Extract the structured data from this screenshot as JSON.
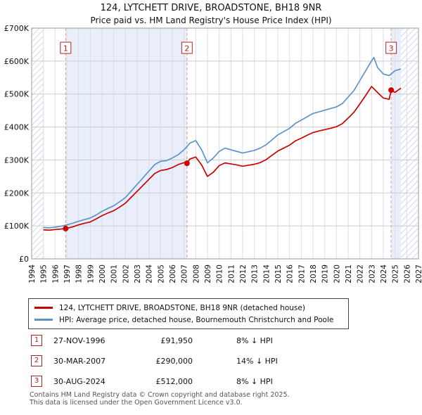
{
  "chart_data": {
    "type": "line",
    "title": "124, LYTCHETT DRIVE, BROADSTONE, BH18 9NR",
    "subtitle": "Price paid vs. HM Land Registry's House Price Index (HPI)",
    "xlabel": "",
    "ylabel": "",
    "x_range": [
      1994,
      2027
    ],
    "y_range": [
      0,
      700000
    ],
    "x_ticks": [
      1994,
      1995,
      1996,
      1997,
      1998,
      1999,
      2000,
      2001,
      2002,
      2003,
      2004,
      2005,
      2006,
      2007,
      2008,
      2009,
      2010,
      2011,
      2012,
      2013,
      2014,
      2015,
      2016,
      2017,
      2018,
      2019,
      2020,
      2021,
      2022,
      2023,
      2024,
      2025,
      2026,
      2027
    ],
    "y_ticks": [
      0,
      100000,
      200000,
      300000,
      400000,
      500000,
      600000,
      700000
    ],
    "y_tick_labels": [
      "£0",
      "£100K",
      "£200K",
      "£300K",
      "£400K",
      "£500K",
      "£600K",
      "£700K"
    ],
    "data_start": 1995,
    "data_end": 2025.5,
    "shaded_regions": [
      [
        1996.9,
        2007.25
      ],
      [
        2024.67,
        2025.5
      ]
    ],
    "grid": true,
    "legend_position": "below",
    "colors": {
      "red": "#cc0000",
      "blue": "#5f93c8",
      "dashed": "#e09999",
      "band": "#e9effa",
      "hatch": "#c5d0e2",
      "grid_v": "#dcdce4",
      "grid_h": "#cccccc",
      "frame": "#999999",
      "badge": "#b22222"
    },
    "series": [
      {
        "id": "price-paid",
        "name": "124, LYTCHETT DRIVE, BROADSTONE, BH18 9NR (detached house)",
        "color": "#cc0000",
        "points": [
          [
            1995,
            88000
          ],
          [
            1995.5,
            87000
          ],
          [
            1996,
            89000
          ],
          [
            1996.5,
            90500
          ],
          [
            1996.9,
            91950
          ],
          [
            1997.5,
            97000
          ],
          [
            1998,
            103000
          ],
          [
            1998.5,
            108000
          ],
          [
            1999,
            112000
          ],
          [
            1999.5,
            121000
          ],
          [
            2000,
            131000
          ],
          [
            2000.5,
            139000
          ],
          [
            2001,
            146000
          ],
          [
            2001.5,
            157000
          ],
          [
            2002,
            169000
          ],
          [
            2002.5,
            187000
          ],
          [
            2003,
            205000
          ],
          [
            2003.5,
            223000
          ],
          [
            2004,
            241000
          ],
          [
            2004.5,
            259000
          ],
          [
            2005,
            268000
          ],
          [
            2005.5,
            271000
          ],
          [
            2006,
            277000
          ],
          [
            2006.5,
            286000
          ],
          [
            2007,
            292000
          ],
          [
            2007.25,
            290000
          ],
          [
            2007.5,
            303000
          ],
          [
            2008,
            309000
          ],
          [
            2008.5,
            285000
          ],
          [
            2009,
            250000
          ],
          [
            2009.5,
            263000
          ],
          [
            2010,
            283000
          ],
          [
            2010.5,
            291000
          ],
          [
            2011,
            288000
          ],
          [
            2011.5,
            285000
          ],
          [
            2012,
            281000
          ],
          [
            2012.5,
            284000
          ],
          [
            2013,
            287000
          ],
          [
            2013.5,
            292000
          ],
          [
            2014,
            301000
          ],
          [
            2014.5,
            314000
          ],
          [
            2015,
            327000
          ],
          [
            2015.5,
            336000
          ],
          [
            2016,
            345000
          ],
          [
            2016.5,
            358000
          ],
          [
            2017,
            366000
          ],
          [
            2017.5,
            375000
          ],
          [
            2018,
            383000
          ],
          [
            2018.5,
            388000
          ],
          [
            2019,
            392000
          ],
          [
            2019.5,
            396000
          ],
          [
            2020,
            401000
          ],
          [
            2020.5,
            410000
          ],
          [
            2021,
            427000
          ],
          [
            2021.5,
            445000
          ],
          [
            2022,
            470000
          ],
          [
            2022.5,
            496000
          ],
          [
            2023,
            523000
          ],
          [
            2023.5,
            505000
          ],
          [
            2024,
            488000
          ],
          [
            2024.5,
            484000
          ],
          [
            2024.67,
            512000
          ],
          [
            2025,
            505000
          ],
          [
            2025.5,
            518000
          ]
        ]
      },
      {
        "id": "hpi",
        "name": "HPI: Average price, detached house, Bournemouth Christchurch and Poole",
        "color": "#5f93c8",
        "points": [
          [
            1995,
            95000
          ],
          [
            1995.5,
            94000
          ],
          [
            1996,
            96000
          ],
          [
            1996.5,
            99000
          ],
          [
            1997,
            103000
          ],
          [
            1997.5,
            108000
          ],
          [
            1998,
            114000
          ],
          [
            1998.5,
            119000
          ],
          [
            1999,
            124000
          ],
          [
            1999.5,
            133000
          ],
          [
            2000,
            144000
          ],
          [
            2000.5,
            153000
          ],
          [
            2001,
            161000
          ],
          [
            2001.5,
            173000
          ],
          [
            2002,
            186000
          ],
          [
            2002.5,
            206000
          ],
          [
            2003,
            226000
          ],
          [
            2003.5,
            246000
          ],
          [
            2004,
            266000
          ],
          [
            2004.5,
            286000
          ],
          [
            2005,
            296000
          ],
          [
            2005.5,
            298000
          ],
          [
            2006,
            306000
          ],
          [
            2006.5,
            316000
          ],
          [
            2007,
            331000
          ],
          [
            2007.5,
            351000
          ],
          [
            2008,
            359000
          ],
          [
            2008.5,
            331000
          ],
          [
            2009,
            291000
          ],
          [
            2009.5,
            306000
          ],
          [
            2010,
            326000
          ],
          [
            2010.5,
            336000
          ],
          [
            2011,
            331000
          ],
          [
            2011.5,
            326000
          ],
          [
            2012,
            321000
          ],
          [
            2012.5,
            325000
          ],
          [
            2013,
            329000
          ],
          [
            2013.5,
            336000
          ],
          [
            2014,
            346000
          ],
          [
            2014.5,
            361000
          ],
          [
            2015,
            376000
          ],
          [
            2015.5,
            386000
          ],
          [
            2016,
            396000
          ],
          [
            2016.5,
            411000
          ],
          [
            2017,
            421000
          ],
          [
            2017.5,
            431000
          ],
          [
            2018,
            441000
          ],
          [
            2018.5,
            446000
          ],
          [
            2019,
            451000
          ],
          [
            2019.5,
            456000
          ],
          [
            2020,
            461000
          ],
          [
            2020.5,
            471000
          ],
          [
            2021,
            491000
          ],
          [
            2021.5,
            511000
          ],
          [
            2022,
            541000
          ],
          [
            2022.5,
            571000
          ],
          [
            2023,
            601000
          ],
          [
            2023.2,
            611000
          ],
          [
            2023.5,
            581000
          ],
          [
            2024,
            561000
          ],
          [
            2024.5,
            556000
          ],
          [
            2025,
            571000
          ],
          [
            2025.5,
            576000
          ]
        ]
      }
    ],
    "markers": [
      {
        "label": "1",
        "x": 1996.9,
        "y": 91950
      },
      {
        "label": "2",
        "x": 2007.25,
        "y": 290000
      },
      {
        "label": "3",
        "x": 2024.67,
        "y": 512000
      }
    ]
  },
  "transactions": [
    {
      "num": "1",
      "date": "27-NOV-1996",
      "price": "£91,950",
      "hpi": "8% ↓ HPI"
    },
    {
      "num": "2",
      "date": "30-MAR-2007",
      "price": "£290,000",
      "hpi": "14% ↓ HPI"
    },
    {
      "num": "3",
      "date": "30-AUG-2024",
      "price": "£512,000",
      "hpi": "8% ↓ HPI"
    }
  ],
  "footer": {
    "line1": "Contains HM Land Registry data © Crown copyright and database right 2025.",
    "line2": "This data is licensed under the Open Government Licence v3.0."
  }
}
